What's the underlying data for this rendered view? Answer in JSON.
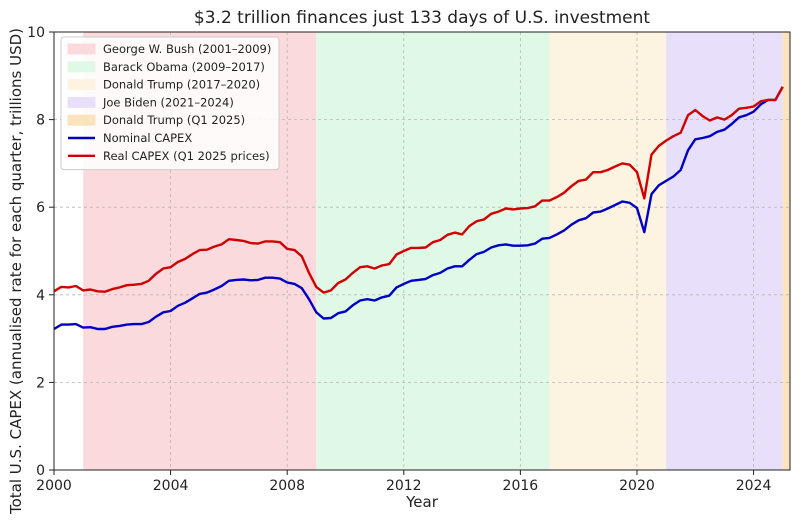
{
  "chart_data": {
    "type": "line",
    "title": "$3.2 trillion finances just 133 days of U.S. investment",
    "xlabel": "Year",
    "ylabel": "Total U.S. CAPEX (annualised rate for each quarter, trillions USD)",
    "xlim": [
      2000,
      2025.25
    ],
    "ylim": [
      0,
      10
    ],
    "x_ticks": [
      2000,
      2004,
      2008,
      2012,
      2016,
      2020,
      2024
    ],
    "y_ticks": [
      0,
      2,
      4,
      6,
      8,
      10
    ],
    "grid": true,
    "legend_position": "top-left",
    "shaded_periods": [
      {
        "label": "George W. Bush (2001–2009)",
        "start": 2001.0,
        "end": 2009.0,
        "color": "#fadadd"
      },
      {
        "label": "Barack Obama (2009–2017)",
        "start": 2009.0,
        "end": 2017.0,
        "color": "#e0f8e6"
      },
      {
        "label": "Donald Trump (2017–2020)",
        "start": 2017.0,
        "end": 2021.0,
        "color": "#fdf3e1"
      },
      {
        "label": "Joe Biden (2021–2024)",
        "start": 2021.0,
        "end": 2025.0,
        "color": "#e8e0fb"
      },
      {
        "label": "Donald Trump (Q1 2025)",
        "start": 2025.0,
        "end": 2025.25,
        "color": "#fbe3bd"
      }
    ],
    "series": [
      {
        "name": "Nominal CAPEX",
        "color": "#0000c0",
        "points": [
          [
            2000.0,
            3.22
          ],
          [
            2000.25,
            3.32
          ],
          [
            2000.5,
            3.32
          ],
          [
            2000.75,
            3.33
          ],
          [
            2001.0,
            3.25
          ],
          [
            2001.25,
            3.26
          ],
          [
            2001.5,
            3.22
          ],
          [
            2001.75,
            3.22
          ],
          [
            2002.0,
            3.27
          ],
          [
            2002.25,
            3.29
          ],
          [
            2002.5,
            3.32
          ],
          [
            2002.75,
            3.33
          ],
          [
            2003.0,
            3.33
          ],
          [
            2003.25,
            3.38
          ],
          [
            2003.5,
            3.5
          ],
          [
            2003.75,
            3.6
          ],
          [
            2004.0,
            3.63
          ],
          [
            2004.25,
            3.75
          ],
          [
            2004.5,
            3.82
          ],
          [
            2004.75,
            3.92
          ],
          [
            2005.0,
            4.02
          ],
          [
            2005.25,
            4.05
          ],
          [
            2005.5,
            4.12
          ],
          [
            2005.75,
            4.2
          ],
          [
            2006.0,
            4.32
          ],
          [
            2006.25,
            4.34
          ],
          [
            2006.5,
            4.35
          ],
          [
            2006.75,
            4.33
          ],
          [
            2007.0,
            4.34
          ],
          [
            2007.25,
            4.39
          ],
          [
            2007.5,
            4.39
          ],
          [
            2007.75,
            4.37
          ],
          [
            2008.0,
            4.28
          ],
          [
            2008.25,
            4.25
          ],
          [
            2008.5,
            4.15
          ],
          [
            2008.75,
            3.9
          ],
          [
            2009.0,
            3.6
          ],
          [
            2009.25,
            3.46
          ],
          [
            2009.5,
            3.47
          ],
          [
            2009.75,
            3.58
          ],
          [
            2010.0,
            3.62
          ],
          [
            2010.25,
            3.76
          ],
          [
            2010.5,
            3.87
          ],
          [
            2010.75,
            3.9
          ],
          [
            2011.0,
            3.87
          ],
          [
            2011.25,
            3.94
          ],
          [
            2011.5,
            3.98
          ],
          [
            2011.75,
            4.17
          ],
          [
            2012.0,
            4.25
          ],
          [
            2012.25,
            4.32
          ],
          [
            2012.5,
            4.34
          ],
          [
            2012.75,
            4.36
          ],
          [
            2013.0,
            4.45
          ],
          [
            2013.25,
            4.5
          ],
          [
            2013.5,
            4.6
          ],
          [
            2013.75,
            4.65
          ],
          [
            2014.0,
            4.65
          ],
          [
            2014.25,
            4.8
          ],
          [
            2014.5,
            4.93
          ],
          [
            2014.75,
            4.98
          ],
          [
            2015.0,
            5.08
          ],
          [
            2015.25,
            5.13
          ],
          [
            2015.5,
            5.15
          ],
          [
            2015.75,
            5.12
          ],
          [
            2016.0,
            5.12
          ],
          [
            2016.25,
            5.13
          ],
          [
            2016.5,
            5.17
          ],
          [
            2016.75,
            5.28
          ],
          [
            2017.0,
            5.3
          ],
          [
            2017.25,
            5.38
          ],
          [
            2017.5,
            5.47
          ],
          [
            2017.75,
            5.6
          ],
          [
            2018.0,
            5.7
          ],
          [
            2018.25,
            5.75
          ],
          [
            2018.5,
            5.88
          ],
          [
            2018.75,
            5.9
          ],
          [
            2019.0,
            5.97
          ],
          [
            2019.25,
            6.05
          ],
          [
            2019.5,
            6.13
          ],
          [
            2019.75,
            6.1
          ],
          [
            2020.0,
            5.98
          ],
          [
            2020.25,
            5.43
          ],
          [
            2020.5,
            6.3
          ],
          [
            2020.75,
            6.5
          ],
          [
            2021.0,
            6.6
          ],
          [
            2021.25,
            6.7
          ],
          [
            2021.5,
            6.85
          ],
          [
            2021.75,
            7.3
          ],
          [
            2022.0,
            7.55
          ],
          [
            2022.25,
            7.58
          ],
          [
            2022.5,
            7.62
          ],
          [
            2022.75,
            7.72
          ],
          [
            2023.0,
            7.77
          ],
          [
            2023.25,
            7.9
          ],
          [
            2023.5,
            8.05
          ],
          [
            2023.75,
            8.1
          ],
          [
            2024.0,
            8.18
          ],
          [
            2024.25,
            8.35
          ],
          [
            2024.5,
            8.45
          ],
          [
            2024.75,
            8.45
          ],
          [
            2025.0,
            8.75
          ]
        ]
      },
      {
        "name": "Real CAPEX (Q1 2025 prices)",
        "color": "#d00000",
        "points": [
          [
            2000.0,
            4.08
          ],
          [
            2000.25,
            4.18
          ],
          [
            2000.5,
            4.17
          ],
          [
            2000.75,
            4.2
          ],
          [
            2001.0,
            4.1
          ],
          [
            2001.25,
            4.12
          ],
          [
            2001.5,
            4.08
          ],
          [
            2001.75,
            4.07
          ],
          [
            2002.0,
            4.13
          ],
          [
            2002.25,
            4.17
          ],
          [
            2002.5,
            4.22
          ],
          [
            2002.75,
            4.23
          ],
          [
            2003.0,
            4.25
          ],
          [
            2003.25,
            4.32
          ],
          [
            2003.5,
            4.48
          ],
          [
            2003.75,
            4.6
          ],
          [
            2004.0,
            4.63
          ],
          [
            2004.25,
            4.75
          ],
          [
            2004.5,
            4.82
          ],
          [
            2004.75,
            4.93
          ],
          [
            2005.0,
            5.02
          ],
          [
            2005.25,
            5.03
          ],
          [
            2005.5,
            5.1
          ],
          [
            2005.75,
            5.15
          ],
          [
            2006.0,
            5.27
          ],
          [
            2006.25,
            5.25
          ],
          [
            2006.5,
            5.23
          ],
          [
            2006.75,
            5.18
          ],
          [
            2007.0,
            5.17
          ],
          [
            2007.25,
            5.22
          ],
          [
            2007.5,
            5.22
          ],
          [
            2007.75,
            5.2
          ],
          [
            2008.0,
            5.05
          ],
          [
            2008.25,
            5.02
          ],
          [
            2008.5,
            4.88
          ],
          [
            2008.75,
            4.5
          ],
          [
            2009.0,
            4.18
          ],
          [
            2009.25,
            4.05
          ],
          [
            2009.5,
            4.1
          ],
          [
            2009.75,
            4.27
          ],
          [
            2010.0,
            4.35
          ],
          [
            2010.25,
            4.5
          ],
          [
            2010.5,
            4.63
          ],
          [
            2010.75,
            4.65
          ],
          [
            2011.0,
            4.6
          ],
          [
            2011.25,
            4.67
          ],
          [
            2011.5,
            4.7
          ],
          [
            2011.75,
            4.92
          ],
          [
            2012.0,
            5.0
          ],
          [
            2012.25,
            5.07
          ],
          [
            2012.5,
            5.07
          ],
          [
            2012.75,
            5.08
          ],
          [
            2013.0,
            5.2
          ],
          [
            2013.25,
            5.25
          ],
          [
            2013.5,
            5.37
          ],
          [
            2013.75,
            5.42
          ],
          [
            2014.0,
            5.38
          ],
          [
            2014.25,
            5.57
          ],
          [
            2014.5,
            5.68
          ],
          [
            2014.75,
            5.72
          ],
          [
            2015.0,
            5.85
          ],
          [
            2015.25,
            5.9
          ],
          [
            2015.5,
            5.97
          ],
          [
            2015.75,
            5.95
          ],
          [
            2016.0,
            5.97
          ],
          [
            2016.25,
            5.98
          ],
          [
            2016.5,
            6.02
          ],
          [
            2016.75,
            6.15
          ],
          [
            2017.0,
            6.15
          ],
          [
            2017.25,
            6.23
          ],
          [
            2017.5,
            6.33
          ],
          [
            2017.75,
            6.48
          ],
          [
            2018.0,
            6.6
          ],
          [
            2018.25,
            6.63
          ],
          [
            2018.5,
            6.8
          ],
          [
            2018.75,
            6.8
          ],
          [
            2019.0,
            6.85
          ],
          [
            2019.25,
            6.93
          ],
          [
            2019.5,
            7.0
          ],
          [
            2019.75,
            6.97
          ],
          [
            2020.0,
            6.8
          ],
          [
            2020.25,
            6.2
          ],
          [
            2020.5,
            7.2
          ],
          [
            2020.75,
            7.4
          ],
          [
            2021.0,
            7.52
          ],
          [
            2021.25,
            7.62
          ],
          [
            2021.5,
            7.7
          ],
          [
            2021.75,
            8.1
          ],
          [
            2022.0,
            8.22
          ],
          [
            2022.25,
            8.08
          ],
          [
            2022.5,
            7.98
          ],
          [
            2022.75,
            8.05
          ],
          [
            2023.0,
            8.0
          ],
          [
            2023.25,
            8.1
          ],
          [
            2023.5,
            8.25
          ],
          [
            2023.75,
            8.27
          ],
          [
            2024.0,
            8.3
          ],
          [
            2024.25,
            8.42
          ],
          [
            2024.5,
            8.45
          ],
          [
            2024.75,
            8.45
          ],
          [
            2025.0,
            8.75
          ]
        ]
      }
    ]
  }
}
